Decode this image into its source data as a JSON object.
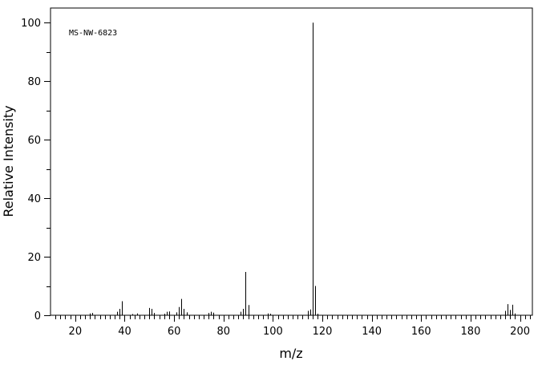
{
  "chart_data": {
    "type": "bar",
    "title": "",
    "annotation": "MS-NW-6823",
    "xlabel": "m/z",
    "ylabel": "Relative Intensity",
    "xlim": [
      10,
      205
    ],
    "ylim": [
      0,
      105
    ],
    "x_ticks": [
      20,
      40,
      60,
      80,
      100,
      120,
      140,
      160,
      180,
      200
    ],
    "y_ticks": [
      0,
      20,
      40,
      60,
      80,
      100
    ],
    "grid": false,
    "peaks": [
      {
        "mz": 26,
        "intensity": 0.6
      },
      {
        "mz": 27,
        "intensity": 0.8
      },
      {
        "mz": 37,
        "intensity": 1.2
      },
      {
        "mz": 38,
        "intensity": 2.2
      },
      {
        "mz": 39,
        "intensity": 4.8
      },
      {
        "mz": 43,
        "intensity": 0.4
      },
      {
        "mz": 45,
        "intensity": 0.6
      },
      {
        "mz": 50,
        "intensity": 2.5
      },
      {
        "mz": 51,
        "intensity": 2.2
      },
      {
        "mz": 52,
        "intensity": 0.8
      },
      {
        "mz": 56,
        "intensity": 0.5
      },
      {
        "mz": 57,
        "intensity": 1.2
      },
      {
        "mz": 58,
        "intensity": 1.3
      },
      {
        "mz": 61,
        "intensity": 1.0
      },
      {
        "mz": 62,
        "intensity": 2.8
      },
      {
        "mz": 63,
        "intensity": 5.6
      },
      {
        "mz": 64,
        "intensity": 2.2
      },
      {
        "mz": 65,
        "intensity": 1.0
      },
      {
        "mz": 74,
        "intensity": 0.8
      },
      {
        "mz": 75,
        "intensity": 1.2
      },
      {
        "mz": 76,
        "intensity": 0.9
      },
      {
        "mz": 87,
        "intensity": 1.2
      },
      {
        "mz": 88,
        "intensity": 2.2
      },
      {
        "mz": 89,
        "intensity": 14.8
      },
      {
        "mz": 90,
        "intensity": 3.5
      },
      {
        "mz": 98,
        "intensity": 0.6
      },
      {
        "mz": 99,
        "intensity": 0.5
      },
      {
        "mz": 114,
        "intensity": 1.5
      },
      {
        "mz": 115,
        "intensity": 2.0
      },
      {
        "mz": 116,
        "intensity": 100
      },
      {
        "mz": 117,
        "intensity": 10.0
      },
      {
        "mz": 118,
        "intensity": 0.5
      },
      {
        "mz": 194,
        "intensity": 1.5
      },
      {
        "mz": 195,
        "intensity": 3.8
      },
      {
        "mz": 196,
        "intensity": 1.8
      },
      {
        "mz": 197,
        "intensity": 3.6
      },
      {
        "mz": 198,
        "intensity": 0.6
      }
    ]
  }
}
